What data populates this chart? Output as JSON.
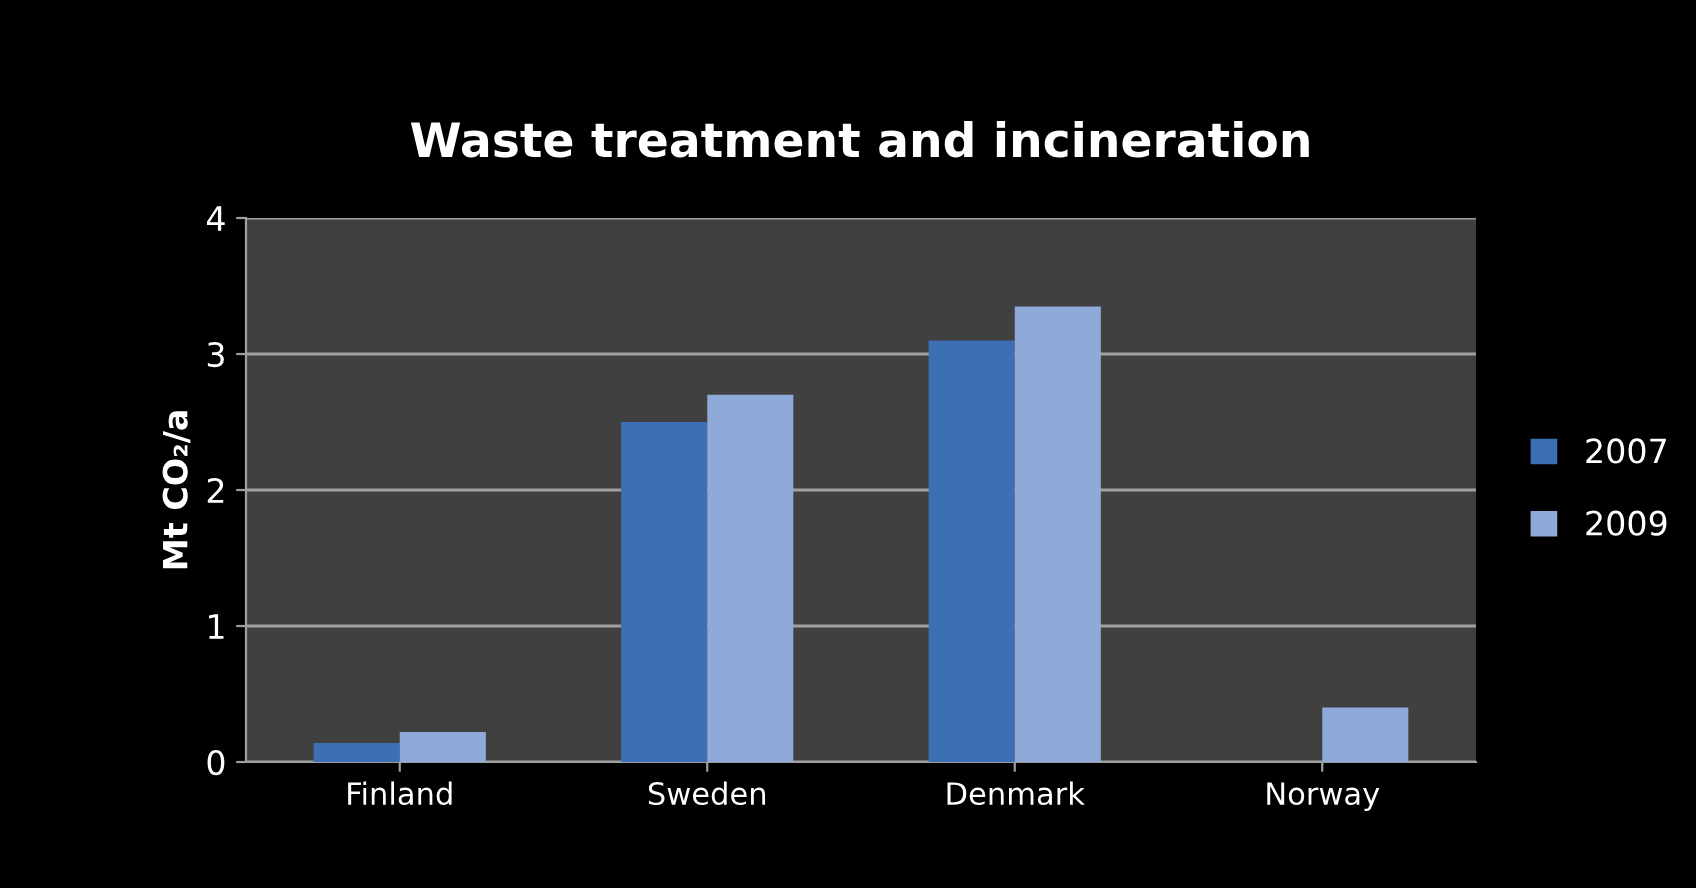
{
  "chart_data": {
    "type": "bar",
    "title": "Waste treatment and incineration",
    "ylabel": "Mt CO₂/a",
    "categories": [
      "Finland",
      "Sweden",
      "Denmark",
      "Norway"
    ],
    "series": [
      {
        "name": "2007",
        "color": "#3d6fb5",
        "values": [
          0.14,
          2.5,
          3.1,
          null
        ]
      },
      {
        "name": "2009",
        "color": "#8fa9d8",
        "values": [
          0.22,
          2.7,
          3.35,
          0.4
        ]
      }
    ],
    "ylim": [
      0,
      4
    ],
    "yticks": [
      0,
      1,
      2,
      3,
      4
    ],
    "grid": "y",
    "legend": "right"
  }
}
